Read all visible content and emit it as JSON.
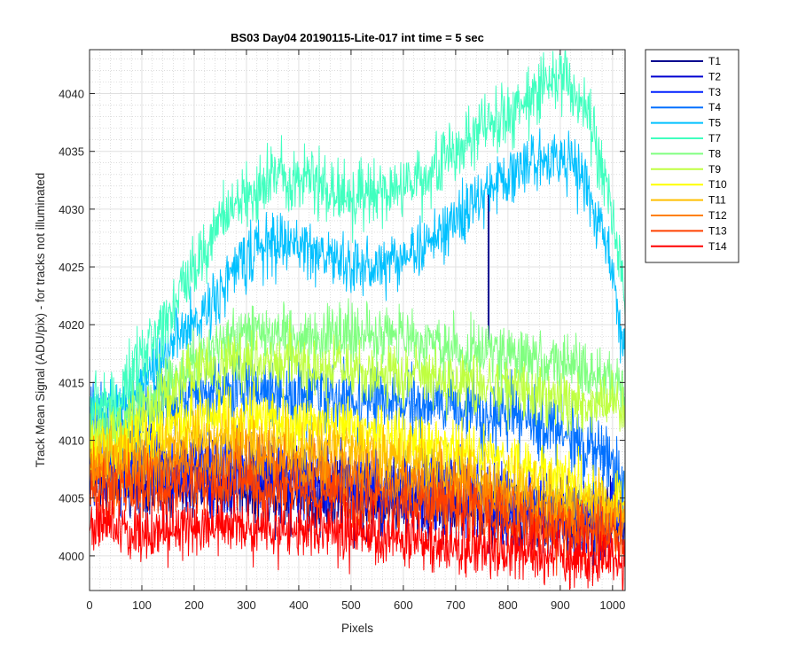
{
  "chart_data": {
    "type": "line",
    "title": "BS03 Day04 20190115-Lite-017 int time = 5 sec",
    "xlabel": "Pixels",
    "ylabel": "Track Mean Signal (ADU/pix) - for tracks not illuminated",
    "xlim": [
      0,
      1024
    ],
    "ylim": [
      3997,
      4043.8
    ],
    "x_ticks": [
      "0",
      "100",
      "200",
      "300",
      "400",
      "500",
      "600",
      "700",
      "800",
      "900",
      "1000"
    ],
    "y_ticks": [
      "4000",
      "4005",
      "4010",
      "4015",
      "4020",
      "4025",
      "4030",
      "4035",
      "4040"
    ],
    "grid": true,
    "minor_grid": true,
    "legend_position": "outside-top-right",
    "x_resolution": "every pixel, 0 to 1024",
    "series": [
      {
        "name": "T1",
        "color": "#00008f",
        "noise": 2.5,
        "anchors": [
          [
            0,
            4007
          ],
          [
            100,
            4006
          ],
          [
            200,
            4006
          ],
          [
            300,
            4006
          ],
          [
            400,
            4005.5
          ],
          [
            500,
            4005
          ],
          [
            600,
            4004.5
          ],
          [
            700,
            4004.5
          ],
          [
            800,
            4003.5
          ],
          [
            900,
            4003
          ],
          [
            1024,
            4003
          ]
        ],
        "spike": {
          "x": 763,
          "y": 4031.5,
          "y_low": 4018.5
        }
      },
      {
        "name": "T2",
        "color": "#0000d0",
        "noise": 2.6,
        "anchors": [
          [
            0,
            4007.5
          ],
          [
            100,
            4007
          ],
          [
            200,
            4007
          ],
          [
            300,
            4007
          ],
          [
            400,
            4006.5
          ],
          [
            500,
            4006
          ],
          [
            600,
            4005.5
          ],
          [
            700,
            4005
          ],
          [
            800,
            4004
          ],
          [
            900,
            4003.5
          ],
          [
            1024,
            4003
          ]
        ]
      },
      {
        "name": "T3",
        "color": "#0020ff",
        "noise": 2.6,
        "anchors": [
          [
            0,
            4008
          ],
          [
            100,
            4007.5
          ],
          [
            200,
            4007.5
          ],
          [
            300,
            4007.5
          ],
          [
            400,
            4007
          ],
          [
            500,
            4006.5
          ],
          [
            600,
            4006
          ],
          [
            700,
            4005.5
          ],
          [
            800,
            4004.5
          ],
          [
            900,
            4004
          ],
          [
            1024,
            4003.5
          ]
        ]
      },
      {
        "name": "T4",
        "color": "#0070ff",
        "noise": 2.3,
        "anchors": [
          [
            0,
            4012
          ],
          [
            50,
            4011
          ],
          [
            100,
            4012
          ],
          [
            150,
            4013
          ],
          [
            200,
            4014
          ],
          [
            300,
            4014.5
          ],
          [
            400,
            4014
          ],
          [
            500,
            4013.5
          ],
          [
            600,
            4013
          ],
          [
            700,
            4013
          ],
          [
            800,
            4012
          ],
          [
            900,
            4011
          ],
          [
            1000,
            4008
          ],
          [
            1024,
            4006
          ]
        ]
      },
      {
        "name": "T5",
        "color": "#00c0ff",
        "noise": 2.0,
        "anchors": [
          [
            0,
            4012
          ],
          [
            50,
            4012
          ],
          [
            100,
            4015
          ],
          [
            150,
            4018
          ],
          [
            200,
            4020
          ],
          [
            250,
            4023
          ],
          [
            300,
            4026
          ],
          [
            350,
            4027
          ],
          [
            400,
            4027
          ],
          [
            450,
            4026
          ],
          [
            500,
            4025
          ],
          [
            550,
            4025
          ],
          [
            600,
            4026
          ],
          [
            650,
            4027
          ],
          [
            700,
            4029
          ],
          [
            750,
            4031
          ],
          [
            800,
            4033
          ],
          [
            850,
            4034
          ],
          [
            900,
            4035
          ],
          [
            950,
            4032
          ],
          [
            1000,
            4025
          ],
          [
            1024,
            4017
          ]
        ]
      },
      {
        "name": "T7",
        "color": "#40ffbf",
        "noise": 2.2,
        "anchors": [
          [
            0,
            4013
          ],
          [
            50,
            4013
          ],
          [
            100,
            4017
          ],
          [
            150,
            4021
          ],
          [
            200,
            4025
          ],
          [
            250,
            4029
          ],
          [
            300,
            4031
          ],
          [
            350,
            4033
          ],
          [
            400,
            4033
          ],
          [
            450,
            4032
          ],
          [
            500,
            4031
          ],
          [
            550,
            4031
          ],
          [
            600,
            4032
          ],
          [
            650,
            4033
          ],
          [
            700,
            4035
          ],
          [
            750,
            4037
          ],
          [
            800,
            4038
          ],
          [
            850,
            4040
          ],
          [
            900,
            4042
          ],
          [
            950,
            4038
          ],
          [
            1000,
            4030
          ],
          [
            1024,
            4022
          ]
        ]
      },
      {
        "name": "T8",
        "color": "#80ff80",
        "noise": 2.0,
        "anchors": [
          [
            0,
            4011
          ],
          [
            50,
            4011
          ],
          [
            100,
            4013
          ],
          [
            150,
            4015
          ],
          [
            200,
            4017
          ],
          [
            250,
            4018
          ],
          [
            300,
            4019
          ],
          [
            400,
            4019
          ],
          [
            500,
            4019
          ],
          [
            600,
            4019
          ],
          [
            700,
            4018
          ],
          [
            800,
            4017.5
          ],
          [
            900,
            4016.5
          ],
          [
            1000,
            4015
          ],
          [
            1024,
            4014
          ]
        ]
      },
      {
        "name": "T9",
        "color": "#bfff40",
        "noise": 2.0,
        "anchors": [
          [
            0,
            4010
          ],
          [
            50,
            4010
          ],
          [
            100,
            4012
          ],
          [
            150,
            4014
          ],
          [
            200,
            4016
          ],
          [
            250,
            4016.5
          ],
          [
            300,
            4017
          ],
          [
            400,
            4016.5
          ],
          [
            500,
            4016
          ],
          [
            600,
            4015.5
          ],
          [
            700,
            4015
          ],
          [
            800,
            4014.5
          ],
          [
            900,
            4013.5
          ],
          [
            1000,
            4013
          ],
          [
            1024,
            4012.5
          ]
        ]
      },
      {
        "name": "T10",
        "color": "#ffff00",
        "noise": 2.0,
        "anchors": [
          [
            0,
            4009
          ],
          [
            50,
            4009
          ],
          [
            100,
            4010
          ],
          [
            150,
            4011
          ],
          [
            200,
            4012
          ],
          [
            300,
            4012
          ],
          [
            400,
            4011.5
          ],
          [
            500,
            4011
          ],
          [
            600,
            4010
          ],
          [
            700,
            4009
          ],
          [
            800,
            4008
          ],
          [
            900,
            4006.5
          ],
          [
            1000,
            4005.5
          ],
          [
            1024,
            4005
          ]
        ]
      },
      {
        "name": "T11",
        "color": "#ffbf00",
        "noise": 2.0,
        "anchors": [
          [
            0,
            4008.5
          ],
          [
            100,
            4008.5
          ],
          [
            200,
            4010
          ],
          [
            300,
            4010
          ],
          [
            400,
            4009.5
          ],
          [
            500,
            4009
          ],
          [
            600,
            4008
          ],
          [
            700,
            4007
          ],
          [
            800,
            4006
          ],
          [
            900,
            4005
          ],
          [
            1024,
            4004
          ]
        ]
      },
      {
        "name": "T12",
        "color": "#ff8000",
        "noise": 2.0,
        "anchors": [
          [
            0,
            4007
          ],
          [
            100,
            4007
          ],
          [
            200,
            4008
          ],
          [
            300,
            4008
          ],
          [
            400,
            4007.5
          ],
          [
            500,
            4007
          ],
          [
            600,
            4006
          ],
          [
            700,
            4005.5
          ],
          [
            800,
            4004.5
          ],
          [
            900,
            4003.5
          ],
          [
            1024,
            4002.5
          ]
        ]
      },
      {
        "name": "T13",
        "color": "#ff4000",
        "noise": 2.0,
        "anchors": [
          [
            0,
            4005.5
          ],
          [
            100,
            4005.5
          ],
          [
            200,
            4006
          ],
          [
            300,
            4006
          ],
          [
            400,
            4005.5
          ],
          [
            500,
            4005
          ],
          [
            600,
            4004.5
          ],
          [
            700,
            4004
          ],
          [
            800,
            4003
          ],
          [
            900,
            4002
          ],
          [
            1024,
            4001.5
          ]
        ]
      },
      {
        "name": "T14",
        "color": "#ff0000",
        "noise": 2.0,
        "anchors": [
          [
            0,
            4003
          ],
          [
            100,
            4002
          ],
          [
            200,
            4002.5
          ],
          [
            300,
            4002.5
          ],
          [
            400,
            4002
          ],
          [
            500,
            4002
          ],
          [
            600,
            4001.5
          ],
          [
            700,
            4001
          ],
          [
            800,
            4000.5
          ],
          [
            900,
            4000
          ],
          [
            1024,
            3999.5
          ]
        ]
      }
    ]
  }
}
